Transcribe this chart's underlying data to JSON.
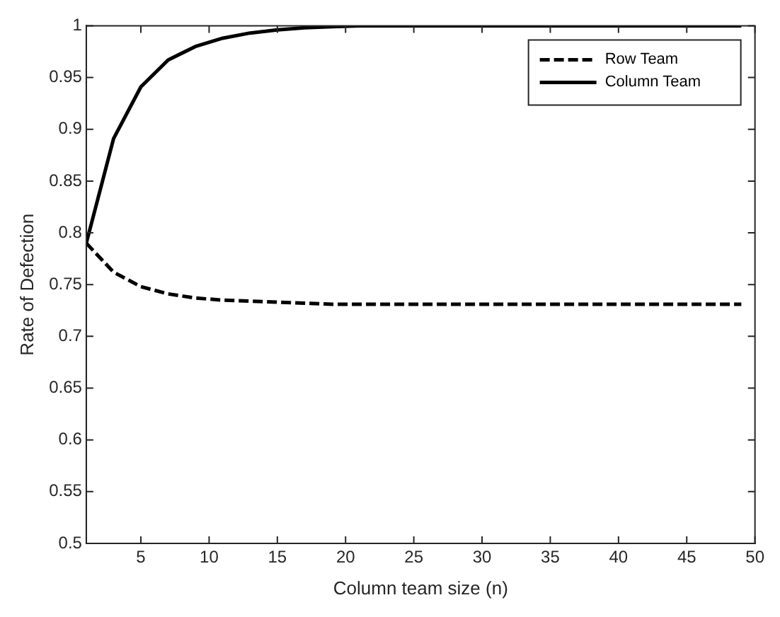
{
  "chart_data": {
    "type": "line",
    "xlabel": "Column team size (n)",
    "ylabel": "Rate of Defection",
    "x": [
      1,
      3,
      5,
      7,
      9,
      11,
      13,
      15,
      17,
      19,
      21,
      23,
      25,
      27,
      29,
      31,
      33,
      35,
      37,
      39,
      41,
      43,
      45,
      47,
      49
    ],
    "series": [
      {
        "name": "Row Team",
        "color": "#000000",
        "line_style": "dashed",
        "values": [
          0.79,
          0.762,
          0.748,
          0.741,
          0.737,
          0.735,
          0.734,
          0.733,
          0.732,
          0.731,
          0.731,
          0.731,
          0.731,
          0.731,
          0.731,
          0.731,
          0.731,
          0.731,
          0.731,
          0.731,
          0.731,
          0.731,
          0.731,
          0.731,
          0.731
        ]
      },
      {
        "name": "Column Team",
        "color": "#000000",
        "line_style": "solid",
        "values": [
          0.79,
          0.891,
          0.941,
          0.967,
          0.98,
          0.988,
          0.993,
          0.996,
          0.998,
          0.999,
          1,
          1,
          1,
          1,
          1,
          1,
          1,
          1,
          1,
          1,
          1,
          1,
          1,
          1,
          1
        ]
      }
    ],
    "xlim": [
      1,
      50
    ],
    "xticks": [
      5,
      10,
      15,
      20,
      25,
      30,
      35,
      40,
      45,
      50
    ],
    "ylim": [
      0.5,
      1
    ],
    "yticks": [
      0.5,
      0.55,
      0.6,
      0.65,
      0.7,
      0.75,
      0.8,
      0.85,
      0.9,
      0.95,
      1
    ],
    "grid": false,
    "legend": "top right",
    "marker": "none"
  }
}
